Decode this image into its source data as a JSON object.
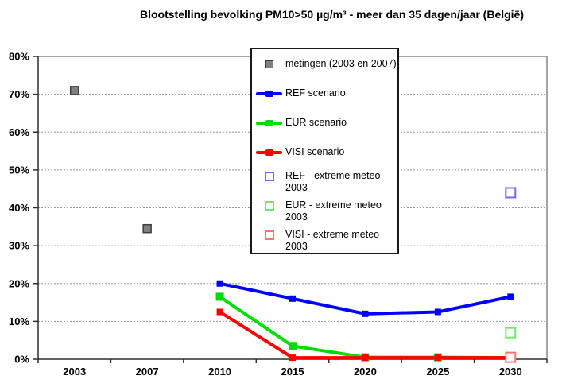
{
  "title": "Blootstelling bevolking PM10>50 µg/m³ - meer dan 35 dagen/jaar (België)",
  "colors": {
    "ref": "#0000ff",
    "eur": "#00dc00",
    "visi": "#ff0000",
    "metingen_fill": "#808080",
    "metingen_border": "#3f3f3f",
    "ref_extreme": "#6a6af2",
    "eur_extreme": "#6fe86f",
    "visi_extreme": "#f87474",
    "grid": "#969696",
    "axis": "#2f2f2f",
    "plot_border": "#858585"
  },
  "legend": {
    "items": [
      {
        "label": "metingen (2003 en 2007)"
      },
      {
        "label": "REF scenario"
      },
      {
        "label": "EUR scenario"
      },
      {
        "label": "VISI scenario"
      },
      {
        "label": "REF - extreme meteo 2003"
      },
      {
        "label": "EUR - extreme meteo 2003"
      },
      {
        "label": "VISI - extreme meteo 2003"
      }
    ]
  },
  "chart_data": {
    "type": "line",
    "title": "Blootstelling bevolking PM10>50 µg/m³ - meer dan 35 dagen/jaar (België)",
    "categories": [
      "2003",
      "2007",
      "2010",
      "2015",
      "2020",
      "2025",
      "2030"
    ],
    "ylim": [
      0,
      80
    ],
    "y_ticks": [
      "0%",
      "10%",
      "20%",
      "30%",
      "40%",
      "50%",
      "60%",
      "70%",
      "80%"
    ],
    "grid": "horizontal-dashed",
    "legend_position": "inside-top-center",
    "series": [
      {
        "name": "metingen (2003 en 2007)",
        "kind": "scatter",
        "marker": "filled-square",
        "color": "#808080",
        "border": "#3f3f3f",
        "points": [
          [
            "2003",
            71
          ],
          [
            "2007",
            34.5
          ]
        ]
      },
      {
        "name": "REF scenario",
        "kind": "line",
        "marker": "square",
        "marker_size": 8,
        "color": "#0000ff",
        "points": [
          [
            "2010",
            20
          ],
          [
            "2015",
            16
          ],
          [
            "2020",
            12
          ],
          [
            "2025",
            12.5
          ],
          [
            "2030",
            16.5
          ]
        ]
      },
      {
        "name": "EUR scenario",
        "kind": "line",
        "marker": "square",
        "marker_size": 10,
        "color": "#00dc00",
        "points": [
          [
            "2010",
            16.5
          ],
          [
            "2015",
            3.5
          ],
          [
            "2020",
            0.5
          ],
          [
            "2025",
            0.5
          ],
          [
            "2030",
            0.4
          ]
        ]
      },
      {
        "name": "VISI scenario",
        "kind": "line",
        "marker": "square",
        "marker_size": 8,
        "color": "#ff0000",
        "points": [
          [
            "2010",
            12.5
          ],
          [
            "2015",
            0.4
          ],
          [
            "2020",
            0.4
          ],
          [
            "2025",
            0.4
          ],
          [
            "2030",
            0.4
          ]
        ]
      },
      {
        "name": "REF - extreme meteo 2003",
        "kind": "scatter",
        "marker": "hollow-square",
        "color": "#6a6af2",
        "points": [
          [
            "2030",
            44
          ]
        ]
      },
      {
        "name": "EUR - extreme meteo 2003",
        "kind": "scatter",
        "marker": "hollow-square",
        "color": "#6fe86f",
        "points": [
          [
            "2030",
            7
          ]
        ]
      },
      {
        "name": "VISI - extreme meteo 2003",
        "kind": "scatter",
        "marker": "hollow-square",
        "color": "#f87474",
        "points": [
          [
            "2030",
            0.5
          ]
        ]
      }
    ]
  }
}
